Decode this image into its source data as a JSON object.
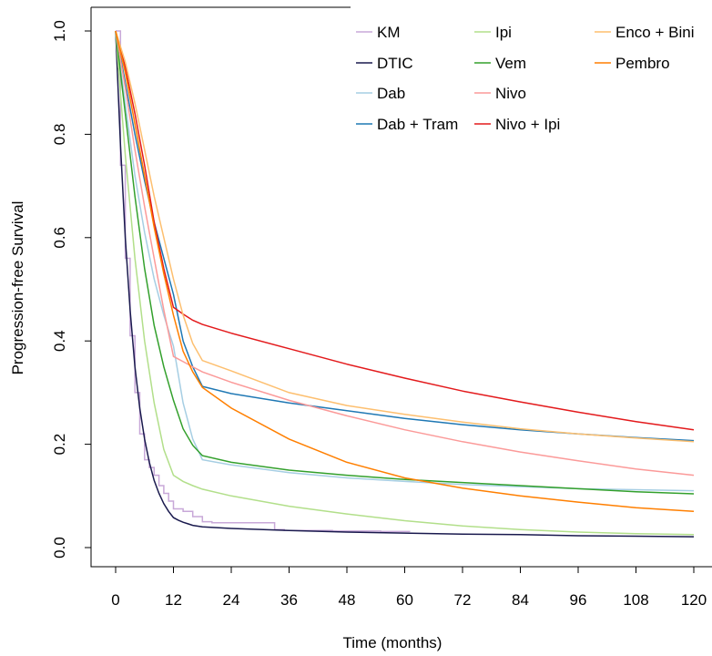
{
  "chart_data": {
    "type": "line",
    "title": "",
    "xlabel": "Time (months)",
    "ylabel": "Progression-free Survival",
    "xlim": [
      0,
      120
    ],
    "ylim": [
      0,
      1
    ],
    "xticks": [
      "0",
      "12",
      "24",
      "36",
      "48",
      "60",
      "72",
      "84",
      "96",
      "108",
      "120"
    ],
    "xtick_values": [
      0,
      12,
      24,
      36,
      48,
      60,
      72,
      84,
      96,
      108,
      120
    ],
    "yticks": [
      "0.0",
      "0.2",
      "0.4",
      "0.6",
      "0.8",
      "1.0"
    ],
    "ytick_values": [
      0,
      0.2,
      0.4,
      0.6,
      0.8,
      1.0
    ],
    "grid": false,
    "legend_position": "top-right",
    "legend_columns": 3,
    "series": [
      {
        "name": "KM",
        "color": "#c8a8d8",
        "step": true,
        "x": [
          0,
          1,
          2,
          3,
          4,
          5,
          6,
          7,
          8,
          9,
          10,
          11,
          12,
          14,
          16,
          18,
          20,
          24,
          33,
          35,
          45,
          55,
          61
        ],
        "y": [
          1.0,
          0.74,
          0.56,
          0.41,
          0.3,
          0.22,
          0.17,
          0.155,
          0.14,
          0.12,
          0.105,
          0.09,
          0.075,
          0.07,
          0.06,
          0.05,
          0.048,
          0.048,
          0.035,
          0.033,
          0.032,
          0.031,
          0.03
        ]
      },
      {
        "name": "DTIC",
        "color": "#1a1a4e",
        "x": [
          0,
          1,
          2,
          3,
          4,
          5,
          6,
          7,
          8,
          9,
          10,
          11,
          12,
          13,
          14,
          15,
          16,
          18,
          24,
          36,
          48,
          60,
          72,
          84,
          96,
          108,
          120
        ],
        "y": [
          1.0,
          0.78,
          0.6,
          0.46,
          0.35,
          0.27,
          0.21,
          0.165,
          0.13,
          0.105,
          0.085,
          0.07,
          0.058,
          0.053,
          0.049,
          0.046,
          0.043,
          0.04,
          0.037,
          0.033,
          0.03,
          0.028,
          0.026,
          0.025,
          0.023,
          0.022,
          0.021
        ]
      },
      {
        "name": "Dab",
        "color": "#a6cee3",
        "x": [
          0,
          2,
          4,
          6,
          8,
          10,
          12,
          14,
          16,
          18,
          24,
          36,
          48,
          60,
          72,
          84,
          96,
          108,
          120
        ],
        "y": [
          1.0,
          0.86,
          0.72,
          0.61,
          0.52,
          0.45,
          0.39,
          0.28,
          0.21,
          0.17,
          0.16,
          0.145,
          0.135,
          0.128,
          0.122,
          0.118,
          0.114,
          0.112,
          0.11
        ]
      },
      {
        "name": "Dab + Tram",
        "color": "#1f78b4",
        "x": [
          0,
          2,
          4,
          6,
          8,
          10,
          12,
          14,
          16,
          18,
          24,
          36,
          48,
          60,
          72,
          84,
          96,
          108,
          120
        ],
        "y": [
          1.0,
          0.9,
          0.8,
          0.71,
          0.63,
          0.56,
          0.49,
          0.4,
          0.35,
          0.312,
          0.298,
          0.28,
          0.265,
          0.25,
          0.238,
          0.228,
          0.22,
          0.213,
          0.207
        ]
      },
      {
        "name": "Ipi",
        "color": "#b2df8a",
        "x": [
          0,
          2,
          4,
          6,
          8,
          10,
          12,
          14,
          16,
          18,
          24,
          36,
          48,
          60,
          72,
          84,
          96,
          108,
          120
        ],
        "y": [
          1.0,
          0.76,
          0.56,
          0.4,
          0.28,
          0.19,
          0.14,
          0.128,
          0.12,
          0.113,
          0.1,
          0.08,
          0.065,
          0.052,
          0.042,
          0.035,
          0.03,
          0.027,
          0.025
        ]
      },
      {
        "name": "Vem",
        "color": "#33a02c",
        "x": [
          0,
          2,
          4,
          6,
          8,
          10,
          12,
          14,
          16,
          18,
          24,
          36,
          48,
          60,
          72,
          84,
          96,
          108,
          120
        ],
        "y": [
          1.0,
          0.84,
          0.68,
          0.54,
          0.43,
          0.35,
          0.285,
          0.23,
          0.198,
          0.178,
          0.165,
          0.15,
          0.14,
          0.132,
          0.126,
          0.12,
          0.114,
          0.108,
          0.104
        ]
      },
      {
        "name": "Nivo",
        "color": "#fb9a99",
        "x": [
          0,
          2,
          4,
          6,
          8,
          10,
          12,
          14,
          16,
          18,
          24,
          36,
          48,
          60,
          72,
          84,
          96,
          108,
          120
        ],
        "y": [
          1.0,
          0.89,
          0.77,
          0.66,
          0.56,
          0.46,
          0.37,
          0.36,
          0.35,
          0.34,
          0.32,
          0.285,
          0.255,
          0.228,
          0.205,
          0.185,
          0.168,
          0.152,
          0.14
        ]
      },
      {
        "name": "Nivo + Ipi",
        "color": "#e31a1c",
        "x": [
          0,
          2,
          4,
          6,
          8,
          10,
          12,
          14,
          16,
          18,
          24,
          36,
          48,
          60,
          72,
          84,
          96,
          108,
          120
        ],
        "y": [
          1.0,
          0.93,
          0.84,
          0.74,
          0.63,
          0.54,
          0.465,
          0.452,
          0.44,
          0.432,
          0.415,
          0.385,
          0.355,
          0.328,
          0.303,
          0.282,
          0.262,
          0.244,
          0.228
        ]
      },
      {
        "name": "Enco + Bini",
        "color": "#fdbf6f",
        "x": [
          0,
          2,
          4,
          6,
          8,
          10,
          12,
          14,
          16,
          18,
          24,
          36,
          48,
          60,
          72,
          84,
          96,
          108,
          120
        ],
        "y": [
          1.0,
          0.94,
          0.86,
          0.77,
          0.68,
          0.6,
          0.52,
          0.45,
          0.395,
          0.362,
          0.342,
          0.3,
          0.275,
          0.258,
          0.243,
          0.23,
          0.22,
          0.212,
          0.205
        ]
      },
      {
        "name": "Pembro",
        "color": "#ff7f00",
        "x": [
          0,
          2,
          4,
          6,
          8,
          10,
          12,
          14,
          16,
          18,
          24,
          36,
          48,
          60,
          72,
          84,
          96,
          108,
          120
        ],
        "y": [
          1.0,
          0.92,
          0.82,
          0.72,
          0.62,
          0.53,
          0.45,
          0.38,
          0.34,
          0.31,
          0.27,
          0.21,
          0.165,
          0.135,
          0.115,
          0.1,
          0.088,
          0.077,
          0.07
        ]
      }
    ]
  }
}
